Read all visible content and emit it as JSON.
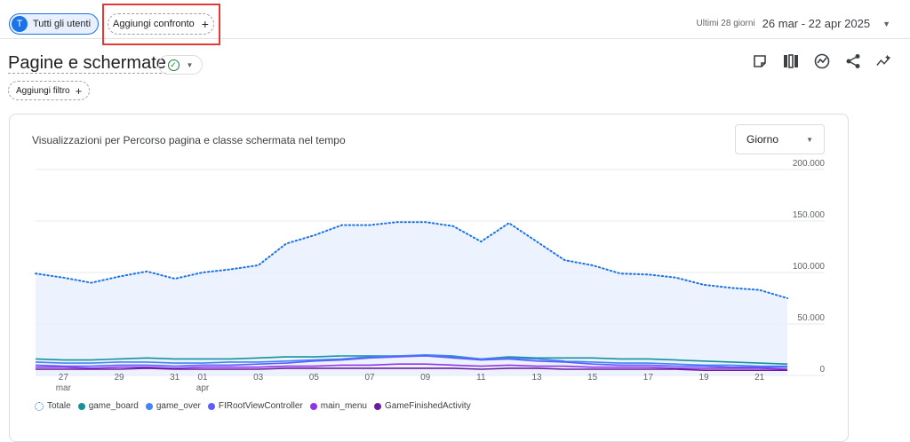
{
  "header": {
    "users_chip": {
      "avatar": "T",
      "label": "Tutti gli utenti"
    },
    "compare_chip": {
      "label": "Aggiungi confronto",
      "icon": "+"
    },
    "daterange": {
      "label": "Ultimi 28 giorni",
      "value": "26 mar - 22 apr 2025"
    }
  },
  "page": {
    "title": "Pagine e schermate",
    "filter_label": "Aggiungi filtro",
    "filter_icon": "+"
  },
  "toolbar": {
    "icons": [
      "notes-icon",
      "compare-columns-icon",
      "insights-icon",
      "share-icon",
      "trend-icon"
    ]
  },
  "card": {
    "title": "Visualizzazioni per Percorso pagina e classe schermata nel tempo",
    "granularity": "Giorno"
  },
  "colors": {
    "accent": "#1a73e8",
    "highlight": "#e53935",
    "total_fill": "#e8f0fe"
  },
  "chart_data": {
    "type": "line",
    "title": "Visualizzazioni per Percorso pagina e classe schermata nel tempo",
    "x": [
      "26 mar",
      "27 mar",
      "28 mar",
      "29 mar",
      "30 mar",
      "31 mar",
      "01 apr",
      "02 apr",
      "03 apr",
      "04 apr",
      "05 apr",
      "06 apr",
      "07 apr",
      "08 apr",
      "09 apr",
      "10 apr",
      "11 apr",
      "12 apr",
      "13 apr",
      "14 apr",
      "15 apr",
      "16 apr",
      "17 apr",
      "18 apr",
      "19 apr",
      "20 apr",
      "21 apr",
      "22 apr"
    ],
    "x_tick_labels": [
      {
        "index": 1,
        "day": "27",
        "month": "mar"
      },
      {
        "index": 3,
        "day": "29",
        "month": ""
      },
      {
        "index": 5,
        "day": "31",
        "month": ""
      },
      {
        "index": 6,
        "day": "01",
        "month": "apr"
      },
      {
        "index": 8,
        "day": "03",
        "month": ""
      },
      {
        "index": 10,
        "day": "05",
        "month": ""
      },
      {
        "index": 12,
        "day": "07",
        "month": ""
      },
      {
        "index": 14,
        "day": "09",
        "month": ""
      },
      {
        "index": 16,
        "day": "11",
        "month": ""
      },
      {
        "index": 18,
        "day": "13",
        "month": ""
      },
      {
        "index": 20,
        "day": "15",
        "month": ""
      },
      {
        "index": 22,
        "day": "17",
        "month": ""
      },
      {
        "index": 24,
        "day": "19",
        "month": ""
      },
      {
        "index": 26,
        "day": "21",
        "month": ""
      }
    ],
    "y_ticks": [
      "200.000",
      "150.000",
      "100.000",
      "50.000",
      "0"
    ],
    "ylim": [
      0,
      200000
    ],
    "series": [
      {
        "name": "Totale",
        "color": "#1a73e8",
        "style": "dotted",
        "fill": true,
        "values": [
          99000,
          95000,
          90000,
          96000,
          101000,
          94000,
          100000,
          103000,
          107000,
          128000,
          136000,
          146000,
          146000,
          149000,
          149000,
          145000,
          130000,
          148000,
          130000,
          112000,
          107000,
          99000,
          98000,
          95000,
          88000,
          85000,
          83000,
          75000
        ]
      },
      {
        "name": "game_board",
        "color": "#12939a",
        "style": "solid",
        "values": [
          16000,
          15000,
          15000,
          16000,
          17000,
          16000,
          16000,
          16000,
          17000,
          18000,
          18000,
          19000,
          19000,
          19000,
          19000,
          18000,
          16000,
          18000,
          17000,
          17000,
          17000,
          16000,
          16000,
          15000,
          14000,
          13000,
          12000,
          11000
        ]
      },
      {
        "name": "game_over",
        "color": "#4285f4",
        "style": "solid",
        "values": [
          13000,
          12000,
          12000,
          13000,
          13000,
          12000,
          12000,
          13000,
          13000,
          14000,
          15000,
          16000,
          18000,
          19000,
          20000,
          19000,
          16000,
          17000,
          16000,
          14000,
          13000,
          12000,
          12000,
          11000,
          10000,
          10000,
          9000,
          9000
        ]
      },
      {
        "name": "FIRootViewController",
        "color": "#5c5cff",
        "style": "solid",
        "values": [
          10000,
          9000,
          9000,
          10000,
          10000,
          9000,
          10000,
          10000,
          11000,
          12000,
          14000,
          15000,
          17000,
          18000,
          19000,
          17000,
          15000,
          16000,
          14000,
          13000,
          11000,
          10000,
          10000,
          9000,
          9000,
          8000,
          8000,
          8000
        ]
      },
      {
        "name": "main_menu",
        "color": "#9334e6",
        "style": "solid",
        "values": [
          8000,
          8000,
          7000,
          8000,
          8000,
          7000,
          8000,
          8000,
          8000,
          9000,
          9000,
          10000,
          10000,
          11000,
          11000,
          10000,
          9000,
          10000,
          9000,
          9000,
          8000,
          8000,
          8000,
          7000,
          7000,
          7000,
          7000,
          6000
        ]
      },
      {
        "name": "GameFinishedActivity",
        "color": "#6a1b9a",
        "style": "solid",
        "values": [
          6000,
          6000,
          6000,
          6000,
          7000,
          6000,
          6000,
          6000,
          6000,
          7000,
          7000,
          7000,
          7000,
          7000,
          7000,
          7000,
          6000,
          7000,
          7000,
          6000,
          6000,
          6000,
          6000,
          6000,
          5000,
          5000,
          5000,
          5000
        ]
      }
    ]
  }
}
